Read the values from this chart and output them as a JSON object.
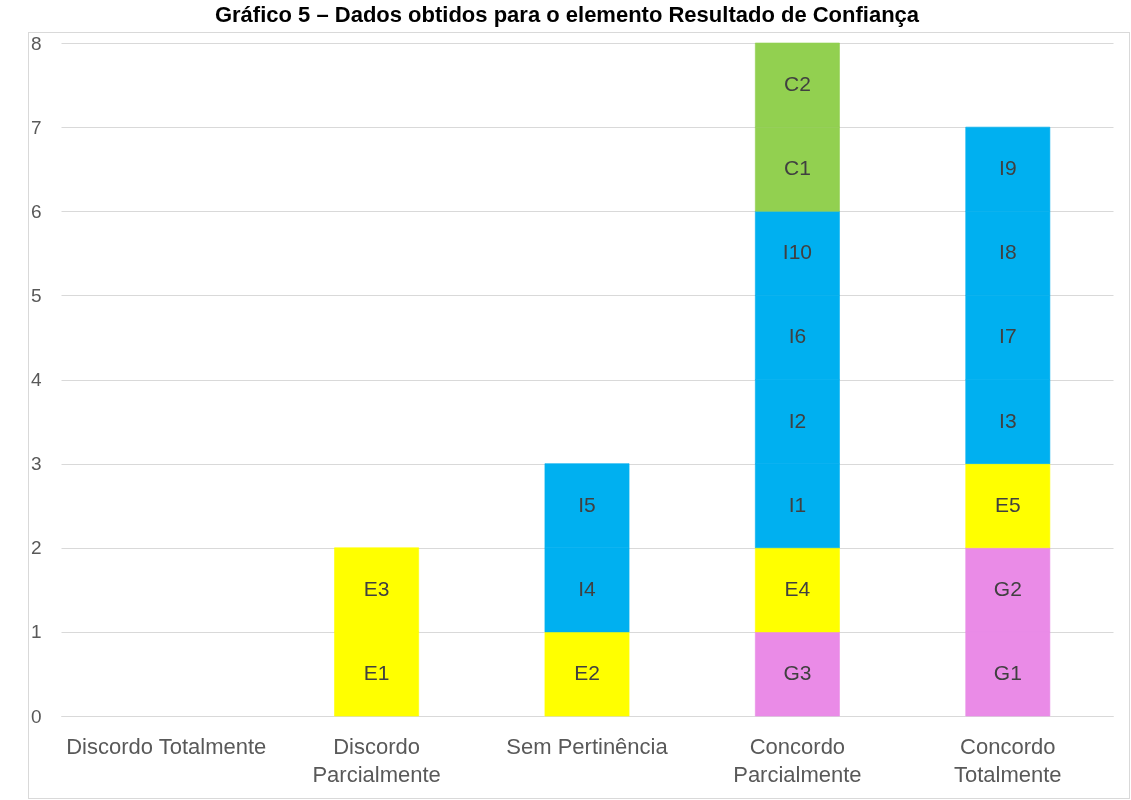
{
  "chart_data": {
    "type": "bar",
    "title": "Gráfico 5 – Dados obtidos para o elemento Resultado de Confiança",
    "categories": [
      "Discordo Totalmente",
      "Discordo Parcialmente",
      "Sem Pertinência",
      "Concordo Parcialmente",
      "Concordo Totalmente"
    ],
    "series": [
      {
        "values": [
          null,
          1,
          1,
          1,
          1
        ],
        "colors": [
          null,
          "#ffff00",
          "#ffff00",
          "#ea8be7",
          "#ea8be7"
        ],
        "value_labels": [
          null,
          "E1",
          "E2",
          "G3",
          "G1"
        ]
      },
      {
        "values": [
          null,
          1,
          1,
          1,
          1
        ],
        "colors": [
          null,
          "#ffff00",
          "#00b0f0",
          "#ffff00",
          "#ea8be7"
        ],
        "value_labels": [
          null,
          "E3",
          "I4",
          "E4",
          "G2"
        ]
      },
      {
        "values": [
          null,
          null,
          1,
          1,
          1
        ],
        "colors": [
          null,
          null,
          "#00b0f0",
          "#00b0f0",
          "#ffff00"
        ],
        "value_labels": [
          null,
          null,
          "I5",
          "I1",
          "E5"
        ]
      },
      {
        "values": [
          null,
          null,
          null,
          1,
          1
        ],
        "colors": [
          null,
          null,
          null,
          "#00b0f0",
          "#00b0f0"
        ],
        "value_labels": [
          null,
          null,
          null,
          "I2",
          "I3"
        ]
      },
      {
        "values": [
          null,
          null,
          null,
          1,
          1
        ],
        "colors": [
          null,
          null,
          null,
          "#00b0f0",
          "#00b0f0"
        ],
        "value_labels": [
          null,
          null,
          null,
          "I6",
          "I7"
        ]
      },
      {
        "values": [
          null,
          null,
          null,
          1,
          1
        ],
        "colors": [
          null,
          null,
          null,
          "#00b0f0",
          "#00b0f0"
        ],
        "value_labels": [
          null,
          null,
          null,
          "I10",
          "I8"
        ]
      },
      {
        "values": [
          null,
          null,
          null,
          1,
          1
        ],
        "colors": [
          null,
          null,
          null,
          "#92d050",
          "#00b0f0"
        ],
        "value_labels": [
          null,
          null,
          null,
          "C1",
          "I9"
        ]
      },
      {
        "values": [
          null,
          null,
          null,
          1,
          null
        ],
        "colors": [
          null,
          null,
          null,
          "#92d050",
          null
        ],
        "value_labels": [
          null,
          null,
          null,
          "C2",
          null
        ]
      }
    ],
    "stacked": true,
    "ylim": [
      0,
      8
    ],
    "yticks": [
      0,
      1,
      2,
      3,
      4,
      5,
      6,
      7,
      8
    ],
    "grid": "y"
  }
}
